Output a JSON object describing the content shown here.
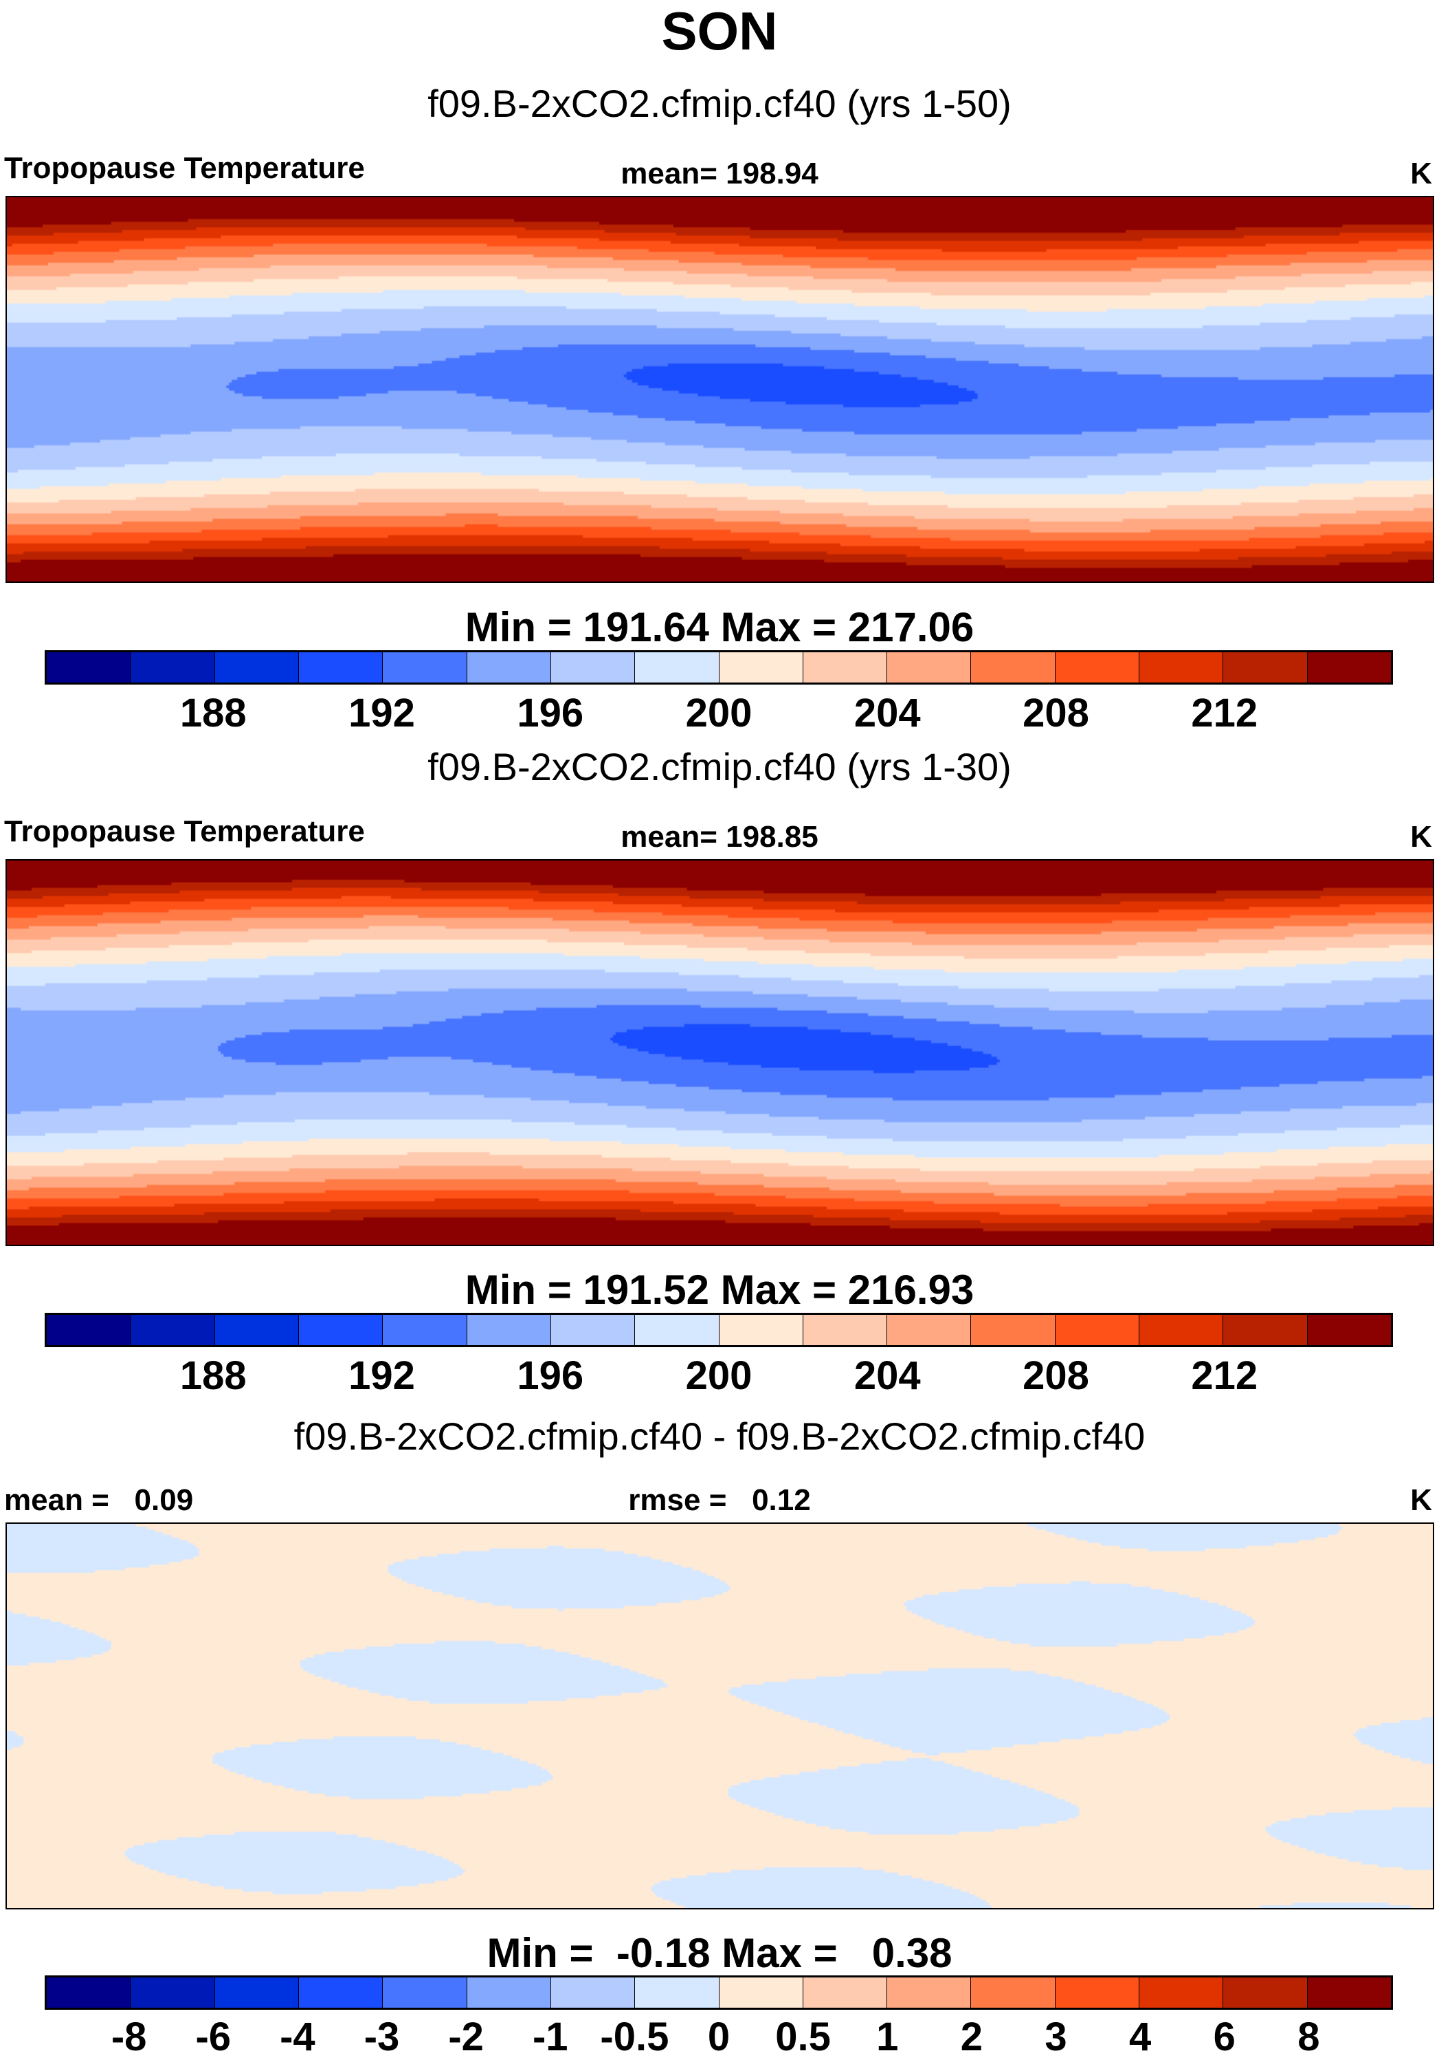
{
  "title": "SON",
  "palette": [
    "#00008b",
    "#001ab8",
    "#0033e0",
    "#1a4dff",
    "#4775ff",
    "#85a8ff",
    "#b3cbff",
    "#d6e8ff",
    "#ffead6",
    "#ffcbb0",
    "#ffa882",
    "#ff7a45",
    "#ff5219",
    "#e03300",
    "#b82200",
    "#8b0000"
  ],
  "chart_data": [
    {
      "type": "heatmap",
      "subtitle": "f09.B-2xCO2.cfmip.cf40 (yrs 1-50)",
      "left_label": "Tropopause Temperature",
      "center_label": "mean= 198.94",
      "units": "K",
      "mean": 198.94,
      "min": 191.64,
      "max": 217.06,
      "minmax_text": "Min = 191.64 Max = 217.06",
      "levels": [
        "188",
        "192",
        "196",
        "200",
        "204",
        "208",
        "212"
      ],
      "level_values": [
        186,
        188,
        190,
        192,
        194,
        196,
        198,
        200,
        202,
        204,
        206,
        208,
        210,
        212,
        214
      ]
    },
    {
      "type": "heatmap",
      "subtitle": "f09.B-2xCO2.cfmip.cf40 (yrs 1-30)",
      "left_label": "Tropopause Temperature",
      "center_label": "mean= 198.85",
      "units": "K",
      "mean": 198.85,
      "min": 191.52,
      "max": 216.93,
      "minmax_text": "Min = 191.52 Max = 216.93",
      "levels": [
        "188",
        "192",
        "196",
        "200",
        "204",
        "208",
        "212"
      ],
      "level_values": [
        186,
        188,
        190,
        192,
        194,
        196,
        198,
        200,
        202,
        204,
        206,
        208,
        210,
        212,
        214
      ]
    },
    {
      "type": "heatmap",
      "subtitle": "f09.B-2xCO2.cfmip.cf40 - f09.B-2xCO2.cfmip.cf40",
      "left_label": "mean =   0.09",
      "center_label": "rmse =   0.12",
      "units": "K",
      "mean": 0.09,
      "rmse": 0.12,
      "min": -0.18,
      "max": 0.38,
      "minmax_text": "Min =  -0.18 Max =   0.38",
      "levels": [
        "-8",
        "-6",
        "-4",
        "-3",
        "-2",
        "-1",
        "-0.5",
        "0",
        "0.5",
        "1",
        "2",
        "3",
        "4",
        "6",
        "8"
      ],
      "level_values": [
        -8,
        -6,
        -4,
        -3,
        -2,
        -1,
        -0.5,
        0,
        0.5,
        1,
        2,
        3,
        4,
        6,
        8
      ]
    }
  ]
}
